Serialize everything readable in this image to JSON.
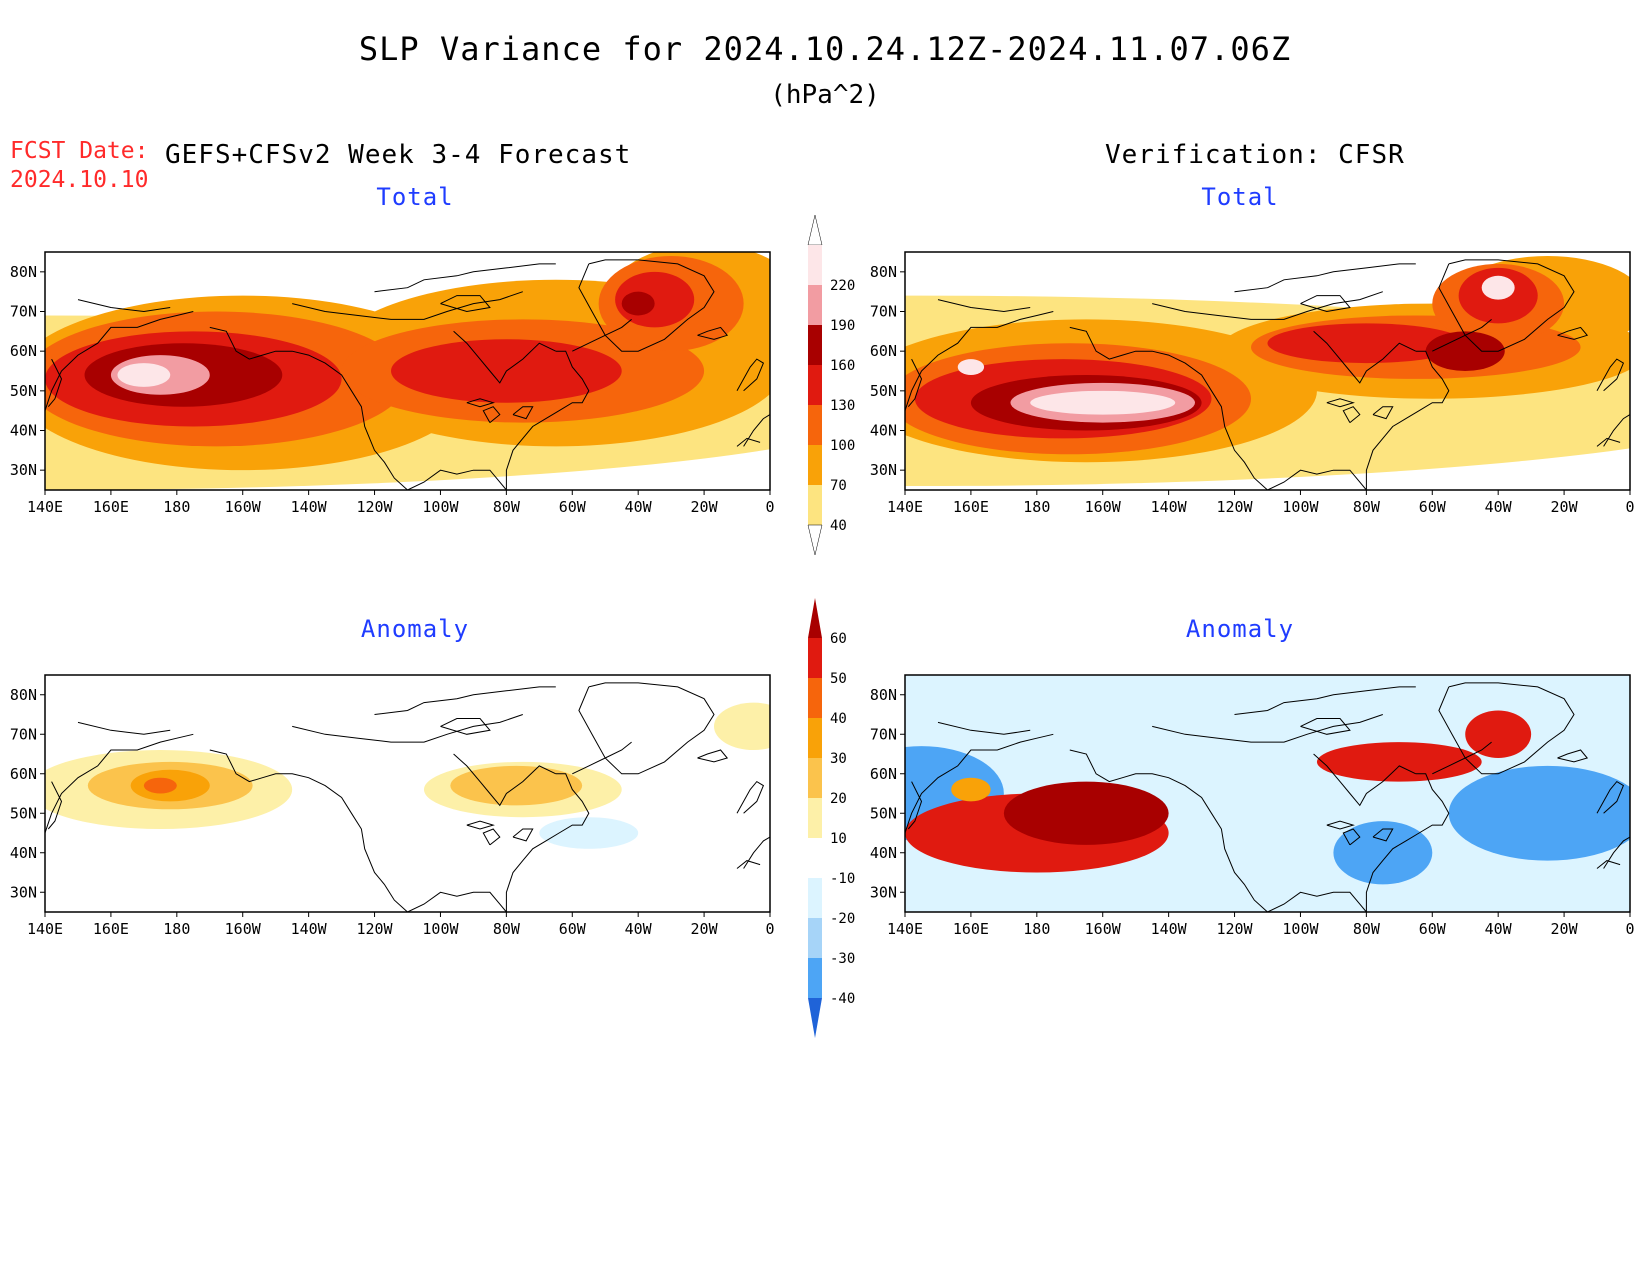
{
  "header": {
    "title": "SLP Variance for 2024.10.24.12Z-2024.11.07.06Z",
    "units": "(hPa^2)",
    "fcst_label": "FCST Date:",
    "fcst_date": "2024.10.10",
    "left_column_title": "GEFS+CFSv2 Week 3-4 Forecast",
    "right_column_title": "Verification: CFSR"
  },
  "panels": [
    {
      "title": "Total",
      "field": "total",
      "source": "forecast"
    },
    {
      "title": "Total",
      "field": "total",
      "source": "verification"
    },
    {
      "title": "Anomaly",
      "field": "anomaly",
      "source": "forecast"
    },
    {
      "title": "Anomaly",
      "field": "anomaly",
      "source": "verification"
    }
  ],
  "axes": {
    "lon_ticks": [
      "140E",
      "160E",
      "180",
      "160W",
      "140W",
      "120W",
      "100W",
      "80W",
      "60W",
      "40W",
      "20W",
      "0"
    ],
    "lon_values": [
      140,
      160,
      180,
      200,
      220,
      240,
      260,
      280,
      300,
      320,
      340,
      360
    ],
    "lat_ticks": [
      "80N",
      "70N",
      "60N",
      "50N",
      "40N",
      "30N"
    ],
    "lat_values": [
      80,
      70,
      60,
      50,
      40,
      30
    ],
    "lon_range": [
      140,
      360
    ],
    "lat_range": [
      25,
      85
    ]
  },
  "colorbars": {
    "total": {
      "levels": [
        "220",
        "190",
        "160",
        "130",
        "100",
        "70",
        "40"
      ],
      "colors": [
        "#fde6e8",
        "#f29ca2",
        "#a80000",
        "#e01a10",
        "#f6650c",
        "#f9a208",
        "#fde480"
      ],
      "top_color": "#ffffff"
    },
    "anomaly": {
      "levels": [
        "60",
        "50",
        "40",
        "30",
        "20",
        "10",
        "-10",
        "-20",
        "-30",
        "-40"
      ],
      "colors": [
        "#a80000",
        "#e01a10",
        "#f6650c",
        "#f9a208",
        "#fbc34c",
        "#fdf0a8",
        "#ffffff",
        "#dcf4ff",
        "#a6d4f8",
        "#4da5f5",
        "#1f63d8"
      ]
    }
  },
  "map_colors": {
    "total": [
      "#fde480",
      "#f9a208",
      "#f6650c",
      "#e01a10",
      "#a80000",
      "#f29ca2",
      "#fde6e8"
    ],
    "anomaly_pos": [
      "#fdf0a8",
      "#fbc34c",
      "#f9a208",
      "#f6650c",
      "#e01a10",
      "#a80000"
    ],
    "anomaly_neg": [
      "#dcf4ff",
      "#a6d4f8",
      "#4da5f5",
      "#1f63d8"
    ]
  },
  "chart_data": [
    {
      "type": "heatmap",
      "title": "Total",
      "units": "hPa^2",
      "xlabel": "",
      "ylabel": "",
      "xlim": [
        140,
        360
      ],
      "ylim": [
        25,
        85
      ],
      "features": [
        {
          "lon": 140,
          "lat": 47,
          "rx": 260,
          "ry": 22,
          "value": 40
        },
        {
          "lon": 200,
          "lat": 52,
          "rx": 70,
          "ry": 22,
          "value": 70
        },
        {
          "lon": 295,
          "lat": 57,
          "rx": 70,
          "ry": 21,
          "value": 70
        },
        {
          "lon": 340,
          "lat": 72,
          "rx": 30,
          "ry": 15,
          "value": 70
        },
        {
          "lon": 192,
          "lat": 53,
          "rx": 58,
          "ry": 17,
          "value": 100
        },
        {
          "lon": 285,
          "lat": 55,
          "rx": 55,
          "ry": 13,
          "value": 100
        },
        {
          "lon": 330,
          "lat": 72,
          "rx": 22,
          "ry": 12,
          "value": 100
        },
        {
          "lon": 185,
          "lat": 53,
          "rx": 45,
          "ry": 12,
          "value": 130
        },
        {
          "lon": 280,
          "lat": 55,
          "rx": 35,
          "ry": 8,
          "value": 130
        },
        {
          "lon": 325,
          "lat": 73,
          "rx": 12,
          "ry": 7,
          "value": 130
        },
        {
          "lon": 182,
          "lat": 54,
          "rx": 30,
          "ry": 8,
          "value": 160
        },
        {
          "lon": 320,
          "lat": 72,
          "rx": 5,
          "ry": 3,
          "value": 160
        },
        {
          "lon": 175,
          "lat": 54,
          "rx": 15,
          "ry": 5,
          "value": 190
        },
        {
          "lon": 170,
          "lat": 54,
          "rx": 8,
          "ry": 3,
          "value": 220
        }
      ]
    },
    {
      "type": "heatmap",
      "title": "Total",
      "units": "hPa^2",
      "xlabel": "",
      "ylabel": "",
      "xlim": [
        140,
        360
      ],
      "ylim": [
        25,
        85
      ],
      "features": [
        {
          "lon": 145,
          "lat": 50,
          "rx": 270,
          "ry": 24,
          "value": 40
        },
        {
          "lon": 195,
          "lat": 50,
          "rx": 70,
          "ry": 18,
          "value": 70
        },
        {
          "lon": 300,
          "lat": 60,
          "rx": 65,
          "ry": 12,
          "value": 70
        },
        {
          "lon": 335,
          "lat": 72,
          "rx": 30,
          "ry": 12,
          "value": 70
        },
        {
          "lon": 190,
          "lat": 48,
          "rx": 55,
          "ry": 14,
          "value": 100
        },
        {
          "lon": 295,
          "lat": 61,
          "rx": 50,
          "ry": 8,
          "value": 100
        },
        {
          "lon": 320,
          "lat": 72,
          "rx": 20,
          "ry": 10,
          "value": 100
        },
        {
          "lon": 188,
          "lat": 48,
          "rx": 45,
          "ry": 10,
          "value": 130
        },
        {
          "lon": 280,
          "lat": 62,
          "rx": 30,
          "ry": 5,
          "value": 130
        },
        {
          "lon": 320,
          "lat": 74,
          "rx": 12,
          "ry": 7,
          "value": 130
        },
        {
          "lon": 195,
          "lat": 47,
          "rx": 35,
          "ry": 7,
          "value": 160
        },
        {
          "lon": 310,
          "lat": 60,
          "rx": 12,
          "ry": 5,
          "value": 160
        },
        {
          "lon": 200,
          "lat": 47,
          "rx": 28,
          "ry": 5,
          "value": 190
        },
        {
          "lon": 200,
          "lat": 47,
          "rx": 22,
          "ry": 3,
          "value": 220
        },
        {
          "lon": 320,
          "lat": 76,
          "rx": 5,
          "ry": 3,
          "value": 220
        },
        {
          "lon": 160,
          "lat": 56,
          "rx": 4,
          "ry": 2,
          "value": 220
        }
      ]
    },
    {
      "type": "heatmap",
      "title": "Anomaly",
      "units": "hPa^2",
      "xlabel": "",
      "ylabel": "",
      "xlim": [
        140,
        360
      ],
      "ylim": [
        25,
        85
      ],
      "features": [
        {
          "lon": 175,
          "lat": 56,
          "rx": 40,
          "ry": 10,
          "value": 10
        },
        {
          "lon": 285,
          "lat": 56,
          "rx": 30,
          "ry": 7,
          "value": 10
        },
        {
          "lon": 355,
          "lat": 72,
          "rx": 12,
          "ry": 6,
          "value": 10
        },
        {
          "lon": 178,
          "lat": 57,
          "rx": 25,
          "ry": 6,
          "value": 20
        },
        {
          "lon": 283,
          "lat": 57,
          "rx": 20,
          "ry": 5,
          "value": 20
        },
        {
          "lon": 178,
          "lat": 57,
          "rx": 12,
          "ry": 4,
          "value": 30
        },
        {
          "lon": 175,
          "lat": 57,
          "rx": 5,
          "ry": 2,
          "value": 40
        },
        {
          "lon": 305,
          "lat": 45,
          "rx": 15,
          "ry": 4,
          "value": -10
        }
      ]
    },
    {
      "type": "heatmap",
      "title": "Anomaly",
      "units": "hPa^2",
      "xlabel": "",
      "ylabel": "",
      "xlim": [
        140,
        360
      ],
      "ylim": [
        25,
        85
      ],
      "features": [
        {
          "lon": 145,
          "lat": 55,
          "rx": 25,
          "ry": 12,
          "value": -30
        },
        {
          "lon": 335,
          "lat": 50,
          "rx": 30,
          "ry": 12,
          "value": -30
        },
        {
          "lon": 285,
          "lat": 40,
          "rx": 15,
          "ry": 8,
          "value": -30
        },
        {
          "lon": 180,
          "lat": 45,
          "rx": 40,
          "ry": 10,
          "value": 50
        },
        {
          "lon": 195,
          "lat": 50,
          "rx": 25,
          "ry": 8,
          "value": 60
        },
        {
          "lon": 290,
          "lat": 63,
          "rx": 25,
          "ry": 5,
          "value": 50
        },
        {
          "lon": 320,
          "lat": 70,
          "rx": 10,
          "ry": 6,
          "value": 50
        },
        {
          "lon": 160,
          "lat": 56,
          "rx": 6,
          "ry": 3,
          "value": 30
        }
      ]
    }
  ]
}
